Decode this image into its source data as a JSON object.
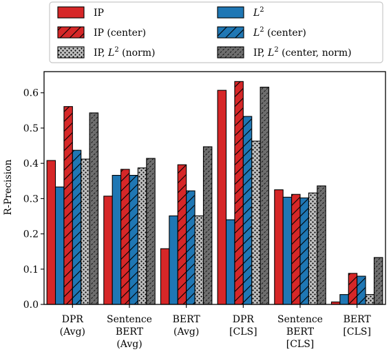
{
  "chart_data": {
    "type": "bar",
    "ylabel": "R-Precision",
    "ylim": [
      0,
      0.66
    ],
    "yticks": [
      "0.0",
      "0.1",
      "0.2",
      "0.3",
      "0.4",
      "0.5",
      "0.6"
    ],
    "grid": false,
    "legend_position": "top",
    "categories": [
      [
        "DPR",
        "(Avg)"
      ],
      [
        "Sentence",
        "BERT",
        "(Avg)"
      ],
      [
        "BERT",
        "(Avg)"
      ],
      [
        "DPR",
        "[CLS]"
      ],
      [
        "Sentence",
        "BERT",
        "[CLS]"
      ],
      [
        "BERT",
        "[CLS]"
      ]
    ],
    "series": [
      {
        "name": "IP",
        "name_sup": "",
        "name_suffix": "",
        "color": "#d62728",
        "pattern": "solid",
        "values": [
          0.408,
          0.307,
          0.158,
          0.607,
          0.325,
          0.007
        ]
      },
      {
        "name": "L",
        "name_sup": "2",
        "name_suffix": "",
        "color": "#1f77b4",
        "pattern": "solid",
        "values": [
          0.333,
          0.366,
          0.251,
          0.24,
          0.304,
          0.028
        ]
      },
      {
        "name": "IP (center)",
        "name_sup": "",
        "name_suffix": "",
        "color": "#d62728",
        "pattern": "hatch-wide",
        "values": [
          0.561,
          0.383,
          0.396,
          0.632,
          0.312,
          0.088
        ]
      },
      {
        "name": "L",
        "name_sup": "2",
        "name_suffix": " (center)",
        "color": "#1f77b4",
        "pattern": "hatch-wide",
        "values": [
          0.437,
          0.366,
          0.322,
          0.533,
          0.302,
          0.08
        ]
      },
      {
        "name": "IP, L",
        "name_sup": "2",
        "name_suffix": " (norm)",
        "color": "#c0c0c0",
        "pattern": "dots",
        "values": [
          0.412,
          0.387,
          0.251,
          0.463,
          0.316,
          0.028
        ]
      },
      {
        "name": "IP, L",
        "name_sup": "2",
        "name_suffix": " (center, norm)",
        "color": "#6e6e6e",
        "pattern": "hatch-dense",
        "values": [
          0.543,
          0.414,
          0.447,
          0.616,
          0.336,
          0.133
        ]
      }
    ],
    "legend_order": [
      0,
      1,
      2,
      3,
      4,
      5
    ]
  }
}
